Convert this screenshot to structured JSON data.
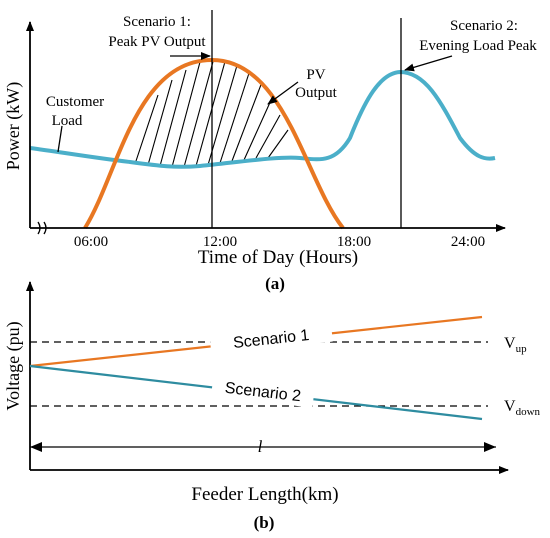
{
  "colors": {
    "pv": "#E87722",
    "load": "#4BAFC9",
    "scenario2_line": "#2E8CA0",
    "axes": "#000000"
  },
  "panel_a": {
    "caption": "(a)",
    "ylabel": "Power (kW)",
    "xlabel": "Time of Day (Hours)",
    "ticks": [
      "06:00",
      "12:00",
      "18:00",
      "24:00"
    ],
    "label_customer_load": [
      "Customer",
      "Load"
    ],
    "label_pv_output": [
      "PV",
      "Output"
    ],
    "label_scenario1": [
      "Scenario 1:",
      "Peak PV Output"
    ],
    "label_scenario2": [
      "Scenario 2:",
      "Evening Load Peak"
    ]
  },
  "panel_b": {
    "caption": "(b)",
    "ylabel": "Voltage (pu)",
    "xlabel": "Feeder Length(km)",
    "length_symbol": "l",
    "line_scenario1": "Scenario 1",
    "line_scenario2": "Scenario 2",
    "v_up": {
      "base": "V",
      "sub": "up"
    },
    "v_down": {
      "base": "V",
      "sub": "down"
    }
  }
}
